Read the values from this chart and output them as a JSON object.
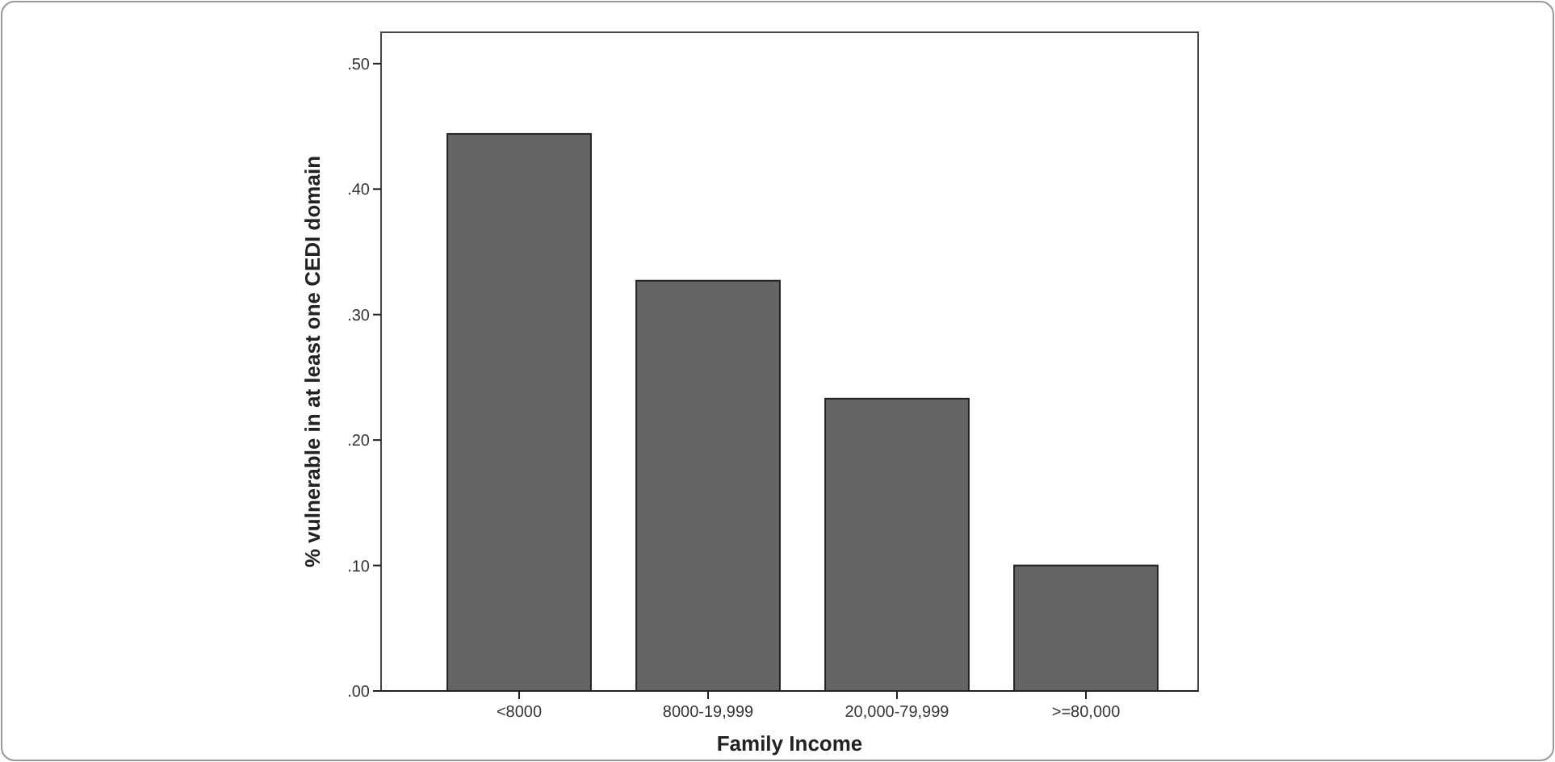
{
  "chart_data": {
    "type": "bar",
    "xlabel": "Family Income",
    "ylabel": "% vulnerable in at least one CEDI domain",
    "categories": [
      "<8000",
      "8000-19,999",
      "20,000-79,999",
      ">=80,000"
    ],
    "values": [
      0.444,
      0.327,
      0.233,
      0.1
    ],
    "color": "#656565",
    "ylim": [
      0,
      0.525
    ],
    "yticks": [
      {
        "value": 0,
        "label": ".00"
      },
      {
        "value": 0.1,
        "label": ".10"
      },
      {
        "value": 0.2,
        "label": ".20"
      },
      {
        "value": 0.3,
        "label": ".30"
      },
      {
        "value": 0.4,
        "label": ".40"
      },
      {
        "value": 0.5,
        "label": ".50"
      }
    ],
    "grid": false
  }
}
